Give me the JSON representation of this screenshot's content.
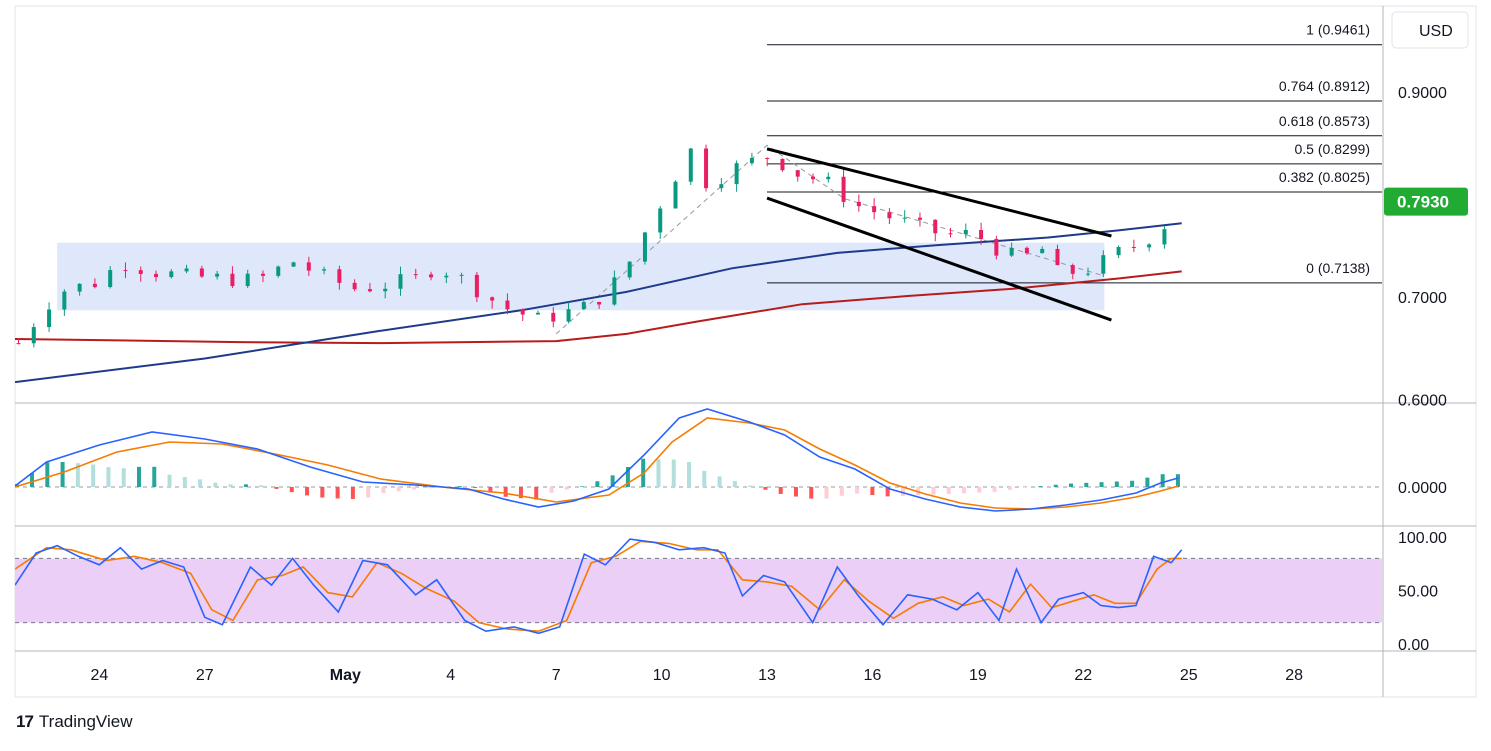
{
  "currency": "USD",
  "last_price_label": "0.7930",
  "colors": {
    "up": "#089981",
    "down": "#e91e63",
    "price_badge": "#22ab33",
    "ma_fast": "#1e3a8a",
    "ma_slow": "#b71c1c",
    "zone": "#dbe4fb",
    "macd": "#2962ff",
    "signal": "#f57c00",
    "rsi_fill": "#eccff7"
  },
  "chart_data": [
    {
      "type": "candlestick",
      "pane": "price",
      "y_ticks": [
        "0.9000",
        "0.7000",
        "0.6000"
      ],
      "y_tick_values": [
        0.9,
        0.7,
        0.6
      ],
      "ylim": [
        0.6,
        0.95
      ],
      "x_ticks": [
        "24",
        "27",
        "May",
        "4",
        "7",
        "10",
        "13",
        "16",
        "19",
        "22",
        "25",
        "28"
      ],
      "x_tick_days": [
        0,
        3,
        7,
        10,
        13,
        16,
        19,
        22,
        25,
        28,
        31,
        34
      ],
      "xlim": [
        -2.4,
        36.5
      ],
      "close_anchors": [
        [
          -2.3,
          0.655
        ],
        [
          -1.2,
          0.705
        ],
        [
          0,
          0.715
        ],
        [
          0.6,
          0.735
        ],
        [
          1.5,
          0.725
        ],
        [
          2.5,
          0.72
        ],
        [
          3.5,
          0.718
        ],
        [
          4.5,
          0.716
        ],
        [
          5.5,
          0.735
        ],
        [
          6.5,
          0.718
        ],
        [
          7.3,
          0.708
        ],
        [
          8.2,
          0.712
        ],
        [
          9,
          0.718
        ],
        [
          9.6,
          0.73
        ],
        [
          10.3,
          0.718
        ],
        [
          11.5,
          0.69
        ],
        [
          12.5,
          0.678
        ],
        [
          13.2,
          0.684
        ],
        [
          14,
          0.692
        ],
        [
          14.9,
          0.722
        ],
        [
          15.6,
          0.768
        ],
        [
          16.3,
          0.812
        ],
        [
          16.8,
          0.845
        ],
        [
          17.3,
          0.81
        ],
        [
          18.2,
          0.828
        ],
        [
          19.1,
          0.838
        ],
        [
          19.9,
          0.82
        ],
        [
          20.7,
          0.812
        ],
        [
          21.5,
          0.79
        ],
        [
          22.5,
          0.778
        ],
        [
          23.3,
          0.768
        ],
        [
          24.1,
          0.76
        ],
        [
          24.9,
          0.762
        ],
        [
          25.5,
          0.748
        ],
        [
          26.2,
          0.736
        ],
        [
          26.8,
          0.748
        ],
        [
          27.3,
          0.722
        ],
        [
          28.3,
          0.728
        ],
        [
          28.9,
          0.742
        ],
        [
          29.6,
          0.752
        ],
        [
          30.2,
          0.765
        ],
        [
          30.6,
          0.784
        ],
        [
          30.7,
          0.793
        ]
      ],
      "bars_per_day": 2.3,
      "last_close": 0.793,
      "zone": {
        "y0": 0.687,
        "y1": 0.753,
        "x0": -1.2,
        "x1": 28.6
      },
      "fibonacci": [
        {
          "label": "1 (0.9461)",
          "value": 0.9461
        },
        {
          "label": "0.764 (0.8912)",
          "value": 0.8912
        },
        {
          "label": "0.618 (0.8573)",
          "value": 0.8573
        },
        {
          "label": "0.5 (0.8299)",
          "value": 0.8299
        },
        {
          "label": "0.382 (0.8025)",
          "value": 0.8025
        },
        {
          "label": "0 (0.7138)",
          "value": 0.7138
        }
      ],
      "fib_x_start": 19.0,
      "channel": [
        {
          "from": [
            19.0,
            0.8445
          ],
          "to": [
            28.8,
            0.7595
          ]
        },
        {
          "from": [
            19.0,
            0.7965
          ],
          "to": [
            28.8,
            0.6775
          ]
        }
      ],
      "zigzag": [
        [
          13.0,
          0.664
        ],
        [
          19.0,
          0.848
        ],
        [
          21.2,
          0.796
        ],
        [
          28.6,
          0.7205
        ]
      ],
      "ma_fast": [
        [
          -2.4,
          0.617
        ],
        [
          3,
          0.64
        ],
        [
          8,
          0.667
        ],
        [
          12,
          0.687
        ],
        [
          15,
          0.705
        ],
        [
          18,
          0.728
        ],
        [
          21,
          0.743
        ],
        [
          24,
          0.751
        ],
        [
          27,
          0.758
        ],
        [
          29,
          0.765
        ],
        [
          30.8,
          0.772
        ]
      ],
      "ma_slow": [
        [
          -2.4,
          0.659
        ],
        [
          4,
          0.656
        ],
        [
          8,
          0.655
        ],
        [
          13,
          0.657
        ],
        [
          15,
          0.664
        ],
        [
          17,
          0.676
        ],
        [
          20,
          0.693
        ],
        [
          23,
          0.701
        ],
        [
          26,
          0.708
        ],
        [
          29,
          0.718
        ],
        [
          30.8,
          0.725
        ]
      ]
    },
    {
      "type": "line",
      "pane": "macd",
      "y_ticks": [
        "0.0000"
      ],
      "ylim": [
        -0.06,
        0.09
      ],
      "macd": [
        [
          -2.4,
          0.001
        ],
        [
          -1.5,
          0.025
        ],
        [
          0,
          0.042
        ],
        [
          1.5,
          0.055
        ],
        [
          3,
          0.048
        ],
        [
          4.5,
          0.038
        ],
        [
          6,
          0.02
        ],
        [
          7.5,
          0.005
        ],
        [
          9,
          0.002
        ],
        [
          10.5,
          -0.002
        ],
        [
          11.5,
          -0.012
        ],
        [
          12.5,
          -0.02
        ],
        [
          13.5,
          -0.014
        ],
        [
          14.5,
          -0.002
        ],
        [
          15.5,
          0.032
        ],
        [
          16.5,
          0.069
        ],
        [
          17.3,
          0.078
        ],
        [
          18.5,
          0.065
        ],
        [
          19.5,
          0.052
        ],
        [
          20.5,
          0.03
        ],
        [
          21.5,
          0.018
        ],
        [
          22.5,
          -0.002
        ],
        [
          23.5,
          -0.012
        ],
        [
          24.5,
          -0.02
        ],
        [
          25.5,
          -0.024
        ],
        [
          26.5,
          -0.022
        ],
        [
          27.5,
          -0.018
        ],
        [
          28.5,
          -0.013
        ],
        [
          29.5,
          -0.006
        ],
        [
          30.2,
          0.004
        ],
        [
          30.7,
          0.009
        ]
      ],
      "signal": [
        [
          -2.4,
          0.0
        ],
        [
          -1,
          0.015
        ],
        [
          0.5,
          0.035
        ],
        [
          2,
          0.045
        ],
        [
          3.5,
          0.043
        ],
        [
          5,
          0.033
        ],
        [
          6.5,
          0.022
        ],
        [
          8,
          0.008
        ],
        [
          10,
          -0.001
        ],
        [
          11.5,
          -0.006
        ],
        [
          13,
          -0.015
        ],
        [
          14.5,
          -0.008
        ],
        [
          15.5,
          0.014
        ],
        [
          16.3,
          0.045
        ],
        [
          17.3,
          0.069
        ],
        [
          18.5,
          0.064
        ],
        [
          19.5,
          0.057
        ],
        [
          20.5,
          0.038
        ],
        [
          21.5,
          0.022
        ],
        [
          22.5,
          0.004
        ],
        [
          23.5,
          -0.007
        ],
        [
          24.5,
          -0.016
        ],
        [
          25.5,
          -0.021
        ],
        [
          26.5,
          -0.022
        ],
        [
          27.5,
          -0.02
        ],
        [
          28.5,
          -0.016
        ],
        [
          29.5,
          -0.01
        ],
        [
          30.2,
          -0.004
        ],
        [
          30.7,
          0.001
        ]
      ]
    },
    {
      "type": "line",
      "pane": "rsi",
      "y_ticks": [
        "100.00",
        "50.00",
        "0.00"
      ],
      "y_tick_values": [
        100,
        50,
        0
      ],
      "ylim": [
        -3,
        103
      ],
      "band": [
        20,
        80
      ],
      "k": [
        [
          -2.4,
          55
        ],
        [
          -1.8,
          85
        ],
        [
          -1.2,
          92
        ],
        [
          -0.6,
          82
        ],
        [
          0,
          74
        ],
        [
          0.6,
          90
        ],
        [
          1.2,
          70
        ],
        [
          1.8,
          78
        ],
        [
          2.4,
          72
        ],
        [
          3,
          25
        ],
        [
          3.5,
          18
        ],
        [
          4.3,
          72
        ],
        [
          4.9,
          55
        ],
        [
          5.5,
          80
        ],
        [
          6.1,
          55
        ],
        [
          6.8,
          30
        ],
        [
          7.5,
          78
        ],
        [
          8.2,
          74
        ],
        [
          9.0,
          46
        ],
        [
          9.6,
          60
        ],
        [
          10.4,
          22
        ],
        [
          11,
          12
        ],
        [
          11.8,
          16
        ],
        [
          12.5,
          10
        ],
        [
          13.1,
          16
        ],
        [
          13.8,
          84
        ],
        [
          14.4,
          74
        ],
        [
          15.1,
          98
        ],
        [
          15.8,
          95
        ],
        [
          16.5,
          88
        ],
        [
          17.2,
          90
        ],
        [
          17.8,
          85
        ],
        [
          18.3,
          45
        ],
        [
          18.9,
          64
        ],
        [
          19.5,
          58
        ],
        [
          20.3,
          20
        ],
        [
          21,
          72
        ],
        [
          21.6,
          45
        ],
        [
          22.3,
          18
        ],
        [
          23,
          46
        ],
        [
          23.7,
          42
        ],
        [
          24.4,
          32
        ],
        [
          25,
          48
        ],
        [
          25.6,
          22
        ],
        [
          26.1,
          70
        ],
        [
          26.8,
          20
        ],
        [
          27.3,
          42
        ],
        [
          28,
          48
        ],
        [
          28.5,
          36
        ],
        [
          29,
          34
        ],
        [
          29.5,
          36
        ],
        [
          30,
          82
        ],
        [
          30.5,
          76
        ],
        [
          30.8,
          88
        ]
      ],
      "d": [
        [
          -2.4,
          70
        ],
        [
          -1.5,
          90
        ],
        [
          -0.8,
          88
        ],
        [
          0.2,
          78
        ],
        [
          1,
          82
        ],
        [
          1.8,
          76
        ],
        [
          2.6,
          66
        ],
        [
          3.2,
          32
        ],
        [
          3.8,
          22
        ],
        [
          4.5,
          60
        ],
        [
          5.2,
          64
        ],
        [
          5.8,
          72
        ],
        [
          6.5,
          48
        ],
        [
          7.2,
          44
        ],
        [
          7.9,
          76
        ],
        [
          8.6,
          66
        ],
        [
          9.3,
          52
        ],
        [
          10.1,
          40
        ],
        [
          10.8,
          20
        ],
        [
          11.6,
          14
        ],
        [
          12.5,
          12
        ],
        [
          13.3,
          22
        ],
        [
          14.0,
          76
        ],
        [
          14.7,
          82
        ],
        [
          15.4,
          96
        ],
        [
          16.2,
          94
        ],
        [
          17,
          88
        ],
        [
          17.6,
          88
        ],
        [
          18.3,
          60
        ],
        [
          19,
          58
        ],
        [
          19.7,
          54
        ],
        [
          20.5,
          32
        ],
        [
          21.2,
          60
        ],
        [
          21.9,
          40
        ],
        [
          22.6,
          24
        ],
        [
          23.3,
          38
        ],
        [
          24,
          44
        ],
        [
          24.6,
          36
        ],
        [
          25.3,
          42
        ],
        [
          25.9,
          30
        ],
        [
          26.5,
          56
        ],
        [
          27.1,
          34
        ],
        [
          27.7,
          40
        ],
        [
          28.3,
          46
        ],
        [
          28.9,
          38
        ],
        [
          29.5,
          38
        ],
        [
          30.1,
          70
        ],
        [
          30.5,
          80
        ],
        [
          30.8,
          80
        ]
      ]
    }
  ]
}
